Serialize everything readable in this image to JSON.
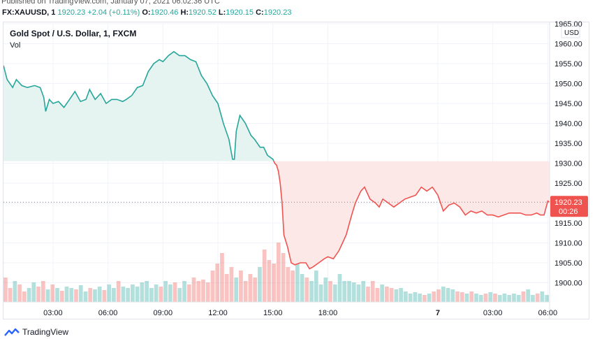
{
  "header": {
    "published": "Published on TradingView.com, January 07, 2021 06:02:36 UTC",
    "symbol": "FX:XAUUSD, 1",
    "last": "1920.23",
    "change": "+2.04 (+0.11%)",
    "o_label": "O:",
    "o_value": "1920.46",
    "h_label": "H:",
    "h_value": "1920.52",
    "l_label": "L:",
    "l_value": "1920.15",
    "c_label": "C:",
    "c_value": "1920.23"
  },
  "chart_title": "Gold Spot / U.S. Dollar, 1, FXCM",
  "volume_label": "Vol",
  "currency_label": "USD",
  "price_badge": {
    "price": "1920.23",
    "countdown": "00:26"
  },
  "footer": {
    "brand": "TradingView"
  },
  "colors": {
    "up": "#26a69a",
    "down": "#ef5350",
    "up_fill": "#e6f4f1",
    "down_fill": "#fde8e8",
    "grid": "#f0f3fa"
  },
  "chart_data": {
    "type": "area",
    "title": "Gold Spot / U.S. Dollar, 1, FXCM",
    "ylabel": "USD",
    "ylim": [
      1895,
      1965
    ],
    "y_ticks": [
      1900,
      1905,
      1910,
      1915,
      1920,
      1925,
      1930,
      1935,
      1940,
      1945,
      1950,
      1955,
      1960,
      1965
    ],
    "y_tick_labels": [
      "1900.00",
      "1905.00",
      "1910.00",
      "1915.00",
      "1920.00",
      "1925.00",
      "1930.00",
      "1935.00",
      "1940.00",
      "1945.00",
      "1950.00",
      "1955.00",
      "1960.00",
      "1965.00"
    ],
    "x_tick_labels": [
      "03:00",
      "06:00",
      "09:00",
      "12:00",
      "15:00",
      "18:00",
      "7",
      "03:00",
      "06:00"
    ],
    "x_ticks_hours": [
      3,
      6,
      9,
      12,
      15,
      18,
      24,
      27,
      30
    ],
    "x_range_hours": [
      0.3,
      30.1
    ],
    "baseline": 1930.5,
    "last_price": 1920.23,
    "grid": true,
    "series": [
      {
        "x": [
          0.3,
          0.5,
          0.8,
          1.0,
          1.3,
          1.6,
          2.0,
          2.3,
          2.5,
          2.6,
          2.8,
          3.0,
          3.3,
          3.6,
          3.9,
          4.2,
          4.5,
          4.8,
          5.0,
          5.3,
          5.6,
          5.9,
          6.2,
          6.5,
          6.8,
          7.0,
          7.3,
          7.6,
          7.9,
          8.2,
          8.5,
          8.8,
          9.0,
          9.3,
          9.6,
          9.9,
          10.2,
          10.5,
          10.8,
          11.1,
          11.4,
          11.7,
          12.0,
          12.3,
          12.6,
          12.8,
          12.9,
          13.0,
          13.2,
          13.5,
          13.8,
          14.0,
          14.3,
          14.5,
          14.7,
          15.0,
          15.1,
          15.2,
          15.3,
          15.4,
          15.5,
          15.6,
          15.8,
          16.0,
          16.2,
          16.5,
          16.8,
          17.0,
          17.2,
          17.5,
          17.8,
          18.0,
          18.3,
          18.6,
          18.8,
          19.0,
          19.3,
          19.5,
          19.8,
          20.0,
          20.3,
          20.6,
          20.8,
          21.0,
          21.3,
          21.6,
          21.9,
          22.2,
          22.5,
          22.8,
          23.1,
          23.4,
          23.7,
          24.0,
          24.3,
          24.6,
          24.9,
          25.2,
          25.5,
          25.8,
          26.1,
          26.4,
          26.7,
          27.0,
          27.3,
          27.6,
          27.9,
          28.2,
          28.5,
          28.8,
          29.1,
          29.4,
          29.6,
          29.8,
          30.0,
          30.1
        ],
        "values": [
          1954.5,
          1951,
          1949,
          1951,
          1949.5,
          1949,
          1949.5,
          1949,
          1946.5,
          1943,
          1946,
          1945,
          1945.5,
          1944,
          1946,
          1948,
          1945.5,
          1946,
          1948.5,
          1946,
          1947.5,
          1945,
          1946,
          1946,
          1945.5,
          1946,
          1947,
          1949,
          1949.5,
          1953,
          1955,
          1956,
          1955.5,
          1957,
          1958,
          1957,
          1957,
          1956,
          1955.5,
          1952,
          1950,
          1947,
          1945,
          1940,
          1936,
          1931,
          1931,
          1938,
          1942,
          1940,
          1937,
          1936,
          1934,
          1934,
          1932,
          1931,
          1930,
          1929.5,
          1928,
          1925,
          1920,
          1912,
          1909,
          1905,
          1904.5,
          1905,
          1905,
          1903.5,
          1904,
          1905,
          1906,
          1906.5,
          1906,
          1908,
          1910,
          1912,
          1917,
          1920,
          1923,
          1924,
          1921,
          1920,
          1919,
          1921,
          1920,
          1919,
          1920,
          1921,
          1921.5,
          1922,
          1924,
          1923,
          1924,
          1922,
          1918,
          1919.5,
          1920,
          1919,
          1917,
          1918,
          1917.5,
          1918,
          1917,
          1917,
          1916.5,
          1917,
          1917.5,
          1917.5,
          1917.5,
          1917,
          1917,
          1917.5,
          1917,
          1917,
          1920.5,
          1920.23
        ]
      }
    ],
    "volume": {
      "unit": "relative",
      "values": [
        0.35,
        0.2,
        0.3,
        0.25,
        0.15,
        0.2,
        0.28,
        0.22,
        0.3,
        0.18,
        0.25,
        0.2,
        0.16,
        0.22,
        0.2,
        0.18,
        0.24,
        0.15,
        0.2,
        0.18,
        0.22,
        0.17,
        0.25,
        0.2,
        0.3,
        0.22,
        0.2,
        0.25,
        0.22,
        0.28,
        0.3,
        0.2,
        0.25,
        0.22,
        0.3,
        0.25,
        0.28,
        0.2,
        0.3,
        0.25,
        0.35,
        0.3,
        0.32,
        0.28,
        0.45,
        0.55,
        0.7,
        0.4,
        0.5,
        0.35,
        0.45,
        0.3,
        0.4,
        0.35,
        0.5,
        0.75,
        0.6,
        0.55,
        0.85,
        0.7,
        0.5,
        0.45,
        0.55,
        0.4,
        0.35,
        0.3,
        0.45,
        0.25,
        0.35,
        0.3,
        0.25,
        0.4,
        0.3,
        0.3,
        0.28,
        0.25,
        0.3,
        0.22,
        0.3,
        0.2,
        0.25,
        0.22,
        0.2,
        0.18,
        0.2,
        0.15,
        0.12,
        0.14,
        0.12,
        0.1,
        0.12,
        0.15,
        0.18,
        0.22,
        0.2,
        0.18,
        0.15,
        0.14,
        0.12,
        0.15,
        0.12,
        0.1,
        0.12,
        0.14,
        0.12,
        0.1,
        0.12,
        0.1,
        0.12,
        0.1,
        0.15,
        0.18,
        0.1,
        0.12,
        0.15,
        0.1
      ]
    }
  }
}
